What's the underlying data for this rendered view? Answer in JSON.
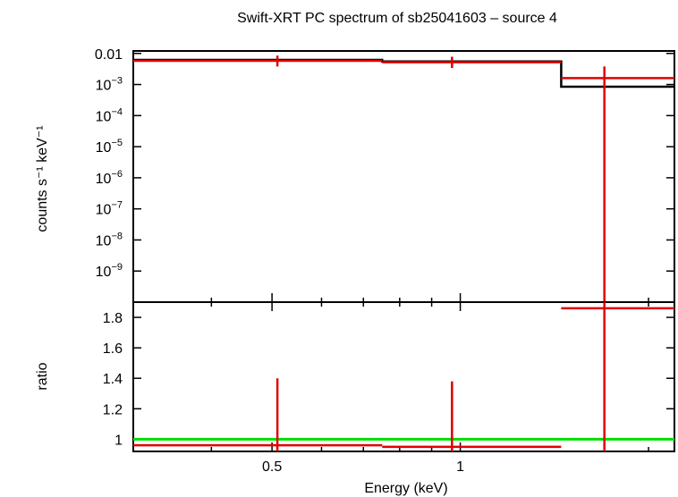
{
  "chart_data": [
    {
      "type": "line",
      "panel": "spectrum",
      "title": "Swift-XRT PC spectrum of sb25041603 – source 4",
      "xlabel": "Energy (keV)",
      "ylabel": "counts s⁻¹ keV⁻¹",
      "xscale": "log",
      "yscale": "log",
      "xlim": [
        0.3,
        2.2
      ],
      "ylim": [
        1e-10,
        0.012
      ],
      "yticks": [
        0.01,
        0.001,
        0.0001,
        1e-05,
        1e-06,
        1e-07,
        1e-08,
        1e-09
      ],
      "ytick_labels": [
        {
          "mantissa": "0.01",
          "exp": ""
        },
        {
          "mantissa": "10",
          "exp": "−3"
        },
        {
          "mantissa": "10",
          "exp": "−4"
        },
        {
          "mantissa": "10",
          "exp": "−5"
        },
        {
          "mantissa": "10",
          "exp": "−6"
        },
        {
          "mantissa": "10",
          "exp": "−7"
        },
        {
          "mantissa": "10",
          "exp": "−8"
        },
        {
          "mantissa": "10",
          "exp": "−9"
        }
      ],
      "series": [
        {
          "color": "#000000",
          "style": "step",
          "bins": [
            {
              "x0": 0.3,
              "x1": 0.75,
              "y": 0.0062
            },
            {
              "x0": 0.75,
              "x1": 1.45,
              "y": 0.0055
            },
            {
              "x0": 1.45,
              "x1": 2.2,
              "y": 0.00085
            }
          ]
        },
        {
          "color": "#e00000",
          "style": "errorbar",
          "points": [
            {
              "x": 0.51,
              "xlo": 0.3,
              "xhi": 0.75,
              "y": 0.0058,
              "ylo": 0.0038,
              "yhi": 0.0085
            },
            {
              "x": 0.97,
              "xlo": 0.75,
              "xhi": 1.45,
              "y": 0.0052,
              "ylo": 0.0034,
              "yhi": 0.0078
            },
            {
              "x": 1.7,
              "xlo": 1.45,
              "xhi": 2.2,
              "y": 0.0016,
              "ylo": 1e-10,
              "yhi": 0.0038
            }
          ]
        }
      ]
    },
    {
      "type": "line",
      "panel": "ratio",
      "xlabel": "Energy (keV)",
      "ylabel": "ratio",
      "xscale": "log",
      "xlim": [
        0.3,
        2.2
      ],
      "ylim": [
        0.92,
        1.9
      ],
      "xticks": [
        0.5,
        1
      ],
      "xtick_labels": [
        "0.5",
        "1"
      ],
      "yticks": [
        1,
        1.2,
        1.4,
        1.6,
        1.8
      ],
      "ytick_labels": [
        "1",
        "1.2",
        "1.4",
        "1.6",
        "1.8"
      ],
      "series": [
        {
          "color": "#00e000",
          "style": "hline",
          "y": 1.0
        },
        {
          "color": "#e00000",
          "style": "errorbar",
          "points": [
            {
              "x": 0.51,
              "xlo": 0.3,
              "xhi": 0.75,
              "y": 0.96,
              "ylo": 0.92,
              "yhi": 1.4
            },
            {
              "x": 0.97,
              "xlo": 0.75,
              "xhi": 1.45,
              "y": 0.95,
              "ylo": 0.92,
              "yhi": 1.38
            },
            {
              "x": 1.7,
              "xlo": 1.45,
              "xhi": 2.2,
              "y": 1.86,
              "ylo": 0.92,
              "yhi": 1.9
            }
          ]
        }
      ]
    }
  ]
}
